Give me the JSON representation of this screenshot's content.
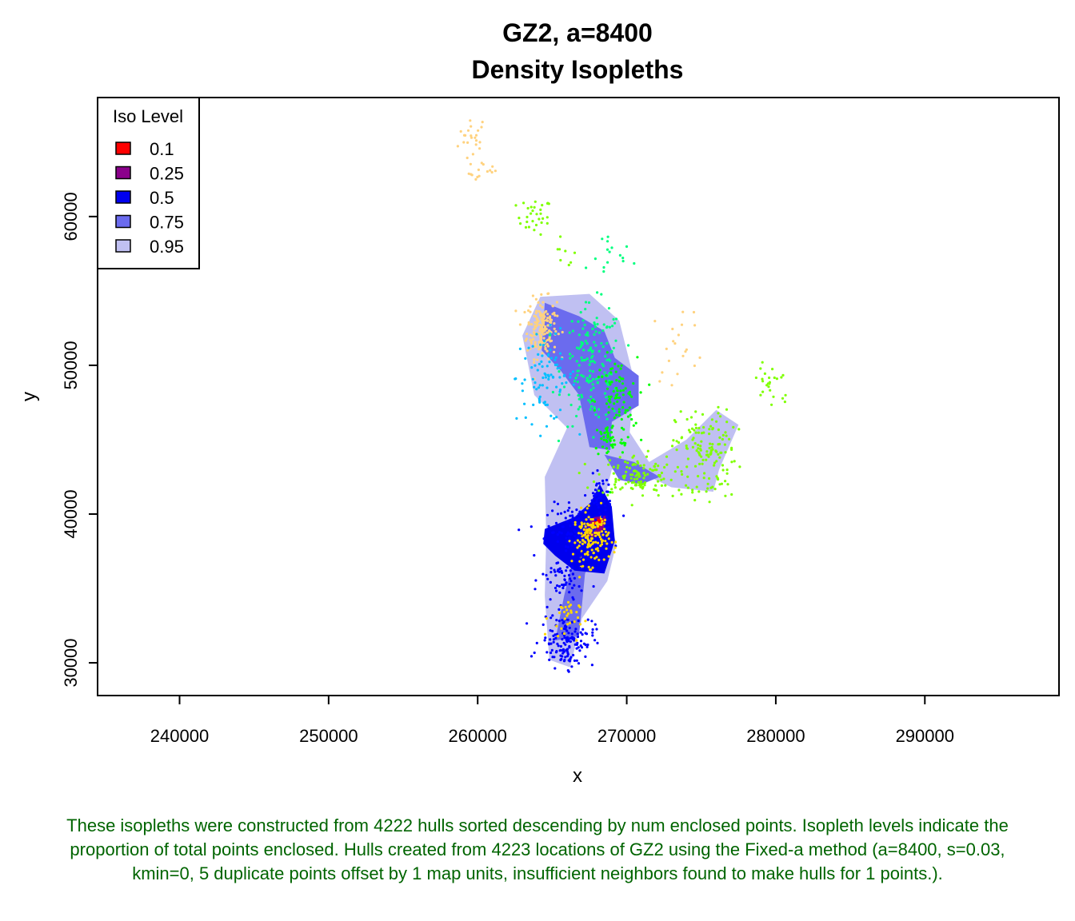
{
  "chart_data": {
    "type": "scatter",
    "title": "GZ2, a=8400",
    "subtitle": "Density Isopleths",
    "xlabel": "x",
    "ylabel": "y",
    "xlim": [
      234500,
      299000
    ],
    "ylim": [
      27800,
      68000
    ],
    "x_ticks": [
      240000,
      250000,
      260000,
      270000,
      280000,
      290000
    ],
    "y_ticks": [
      30000,
      40000,
      50000,
      60000
    ],
    "legend": {
      "title": "Iso Level",
      "position": "top-left",
      "entries": [
        {
          "label": "0.1",
          "color": "#ff0000"
        },
        {
          "label": "0.25",
          "color": "#8b008b"
        },
        {
          "label": "0.5",
          "color": "#0000ee"
        },
        {
          "label": "0.75",
          "color": "#6b6bee"
        },
        {
          "label": "0.95",
          "color": "#c0c0f2"
        }
      ]
    },
    "isopleths": [
      {
        "level": "0.95",
        "color": "#c0c0f2",
        "polygons": [
          [
            [
              264200,
              54600
            ],
            [
              267500,
              54800
            ],
            [
              269500,
              53000
            ],
            [
              270500,
              49000
            ],
            [
              270200,
              45500
            ],
            [
              271500,
              43500
            ],
            [
              274000,
              45000
            ],
            [
              276000,
              47000
            ],
            [
              277500,
              46000
            ],
            [
              276200,
              43000
            ],
            [
              275800,
              41500
            ],
            [
              273000,
              41800
            ],
            [
              271500,
              42500
            ],
            [
              269000,
              43000
            ],
            [
              268500,
              41000
            ],
            [
              269300,
              38000
            ],
            [
              268700,
              35500
            ],
            [
              267000,
              33000
            ],
            [
              266200,
              29700
            ],
            [
              264800,
              30200
            ],
            [
              264500,
              34500
            ],
            [
              264600,
              38500
            ],
            [
              264500,
              42500
            ],
            [
              266000,
              45800
            ],
            [
              263800,
              48000
            ],
            [
              263000,
              52000
            ]
          ]
        ]
      },
      {
        "level": "0.75",
        "color": "#6b6bee",
        "polygons": [
          [
            [
              264500,
              54200
            ],
            [
              266800,
              53300
            ],
            [
              268500,
              52300
            ],
            [
              269200,
              50500
            ],
            [
              270800,
              49300
            ],
            [
              270800,
              47300
            ],
            [
              269000,
              46200
            ],
            [
              268900,
              44300
            ],
            [
              267500,
              44500
            ],
            [
              266800,
              48000
            ],
            [
              265600,
              49600
            ],
            [
              264300,
              51000
            ]
          ],
          [
            [
              268500,
              44000
            ],
            [
              270500,
              43500
            ],
            [
              272200,
              42500
            ],
            [
              271000,
              42000
            ],
            [
              269500,
              42300
            ]
          ],
          [
            [
              265200,
              31500
            ],
            [
              266800,
              31800
            ],
            [
              267200,
              36000
            ],
            [
              268200,
              37800
            ],
            [
              266600,
              37800
            ],
            [
              265800,
              34500
            ]
          ]
        ]
      },
      {
        "level": "0.5",
        "color": "#0000ee",
        "polygons": [
          [
            [
              264500,
              39000
            ],
            [
              266500,
              39800
            ],
            [
              267600,
              40800
            ],
            [
              268200,
              42000
            ],
            [
              269000,
              40500
            ],
            [
              269200,
              38200
            ],
            [
              268500,
              36000
            ],
            [
              266500,
              36200
            ],
            [
              265200,
              37200
            ],
            [
              264400,
              38000
            ]
          ]
        ]
      },
      {
        "level": "0.25",
        "color": "#8b008b",
        "polygons": [
          [
            [
              266900,
              38700
            ],
            [
              267800,
              39800
            ],
            [
              268700,
              39900
            ],
            [
              268300,
              38600
            ],
            [
              267300,
              38300
            ]
          ]
        ]
      },
      {
        "level": "0.1",
        "color": "#ff0000",
        "polygons": [
          [
            [
              267500,
              39100
            ],
            [
              268000,
              39700
            ],
            [
              268500,
              39600
            ],
            [
              268100,
              39000
            ]
          ]
        ]
      }
    ],
    "point_clusters": [
      {
        "color": "#ffd27f",
        "cx": 259700,
        "cy": 65200,
        "sx": 500,
        "sy": 900,
        "n": 25
      },
      {
        "color": "#ffd27f",
        "cx": 260600,
        "cy": 62900,
        "sx": 600,
        "sy": 300,
        "n": 12
      },
      {
        "color": "#7fff00",
        "cx": 263800,
        "cy": 60000,
        "sx": 600,
        "sy": 600,
        "n": 30
      },
      {
        "color": "#7fff00",
        "cx": 265800,
        "cy": 57400,
        "sx": 400,
        "sy": 500,
        "n": 8
      },
      {
        "color": "#00ff7f",
        "cx": 268800,
        "cy": 57300,
        "sx": 800,
        "sy": 800,
        "n": 15
      },
      {
        "color": "#ffd27f",
        "cx": 264300,
        "cy": 52500,
        "sx": 500,
        "sy": 1000,
        "n": 180
      },
      {
        "color": "#00bfff",
        "cx": 264600,
        "cy": 49200,
        "sx": 1000,
        "sy": 1500,
        "n": 90
      },
      {
        "color": "#00ff7f",
        "cx": 267700,
        "cy": 50000,
        "sx": 1000,
        "sy": 2000,
        "n": 160
      },
      {
        "color": "#00ff00",
        "cx": 269300,
        "cy": 47500,
        "sx": 700,
        "sy": 1500,
        "n": 90
      },
      {
        "color": "#00ff00",
        "cx": 268800,
        "cy": 45000,
        "sx": 500,
        "sy": 600,
        "n": 40
      },
      {
        "color": "#7fff00",
        "cx": 270600,
        "cy": 42600,
        "sx": 1300,
        "sy": 700,
        "n": 120
      },
      {
        "color": "#7fff00",
        "cx": 275300,
        "cy": 44400,
        "sx": 1000,
        "sy": 1300,
        "n": 120
      },
      {
        "color": "#7fff00",
        "cx": 279700,
        "cy": 48800,
        "sx": 700,
        "sy": 900,
        "n": 25
      },
      {
        "color": "#7fff00",
        "cx": 275100,
        "cy": 41600,
        "sx": 900,
        "sy": 300,
        "n": 20
      },
      {
        "color": "#ffd27f",
        "cx": 273600,
        "cy": 51400,
        "sx": 900,
        "sy": 1300,
        "n": 20
      },
      {
        "color": "#0000ff",
        "cx": 266900,
        "cy": 38800,
        "sx": 1100,
        "sy": 900,
        "n": 130
      },
      {
        "color": "#ffd700",
        "cx": 267600,
        "cy": 38400,
        "sx": 600,
        "sy": 900,
        "n": 150
      },
      {
        "color": "#0000ff",
        "cx": 268200,
        "cy": 41300,
        "sx": 400,
        "sy": 600,
        "n": 40
      },
      {
        "color": "#0000ff",
        "cx": 265700,
        "cy": 35500,
        "sx": 700,
        "sy": 900,
        "n": 60
      },
      {
        "color": "#0000ff",
        "cx": 266000,
        "cy": 31500,
        "sx": 900,
        "sy": 900,
        "n": 140
      },
      {
        "color": "#ffd700",
        "cx": 265800,
        "cy": 33000,
        "sx": 500,
        "sy": 700,
        "n": 30
      }
    ]
  },
  "caption": "These isopleths were constructed from 4222 hulls sorted descending by num enclosed points. Isopleth levels indicate the proportion of total points enclosed. Hulls created from 4223 locations of GZ2 using the Fixed-a method (a=8400, s=0.03, kmin=0, 5 duplicate points offset by 1 map units, insufficient neighbors found to make hulls for 1 points.)."
}
